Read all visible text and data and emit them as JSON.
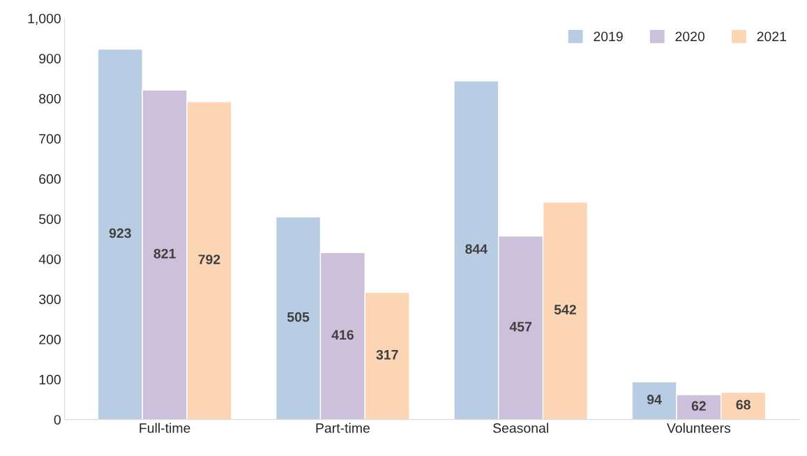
{
  "chart_data": {
    "type": "bar",
    "categories": [
      "Full-time",
      "Part-time",
      "Seasonal",
      "Volunteers"
    ],
    "series": [
      {
        "name": "2019",
        "color": "#b8cce4",
        "values": [
          923,
          505,
          844,
          94
        ]
      },
      {
        "name": "2020",
        "color": "#ccc0da",
        "values": [
          821,
          416,
          457,
          62
        ]
      },
      {
        "name": "2021",
        "color": "#fcd5b5",
        "values": [
          792,
          317,
          542,
          68
        ]
      }
    ],
    "ylim": [
      0,
      1000
    ],
    "yticks": [
      0,
      100,
      200,
      300,
      400,
      500,
      600,
      700,
      800,
      900,
      {
        "value": 1000,
        "label": "1,000"
      }
    ],
    "data_labels": true,
    "legend": "top right",
    "grid": false
  }
}
